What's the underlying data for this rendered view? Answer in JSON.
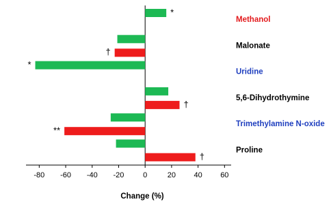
{
  "chart_data": {
    "type": "bar",
    "orientation": "horizontal",
    "x_label": "Change (%)",
    "categories": [
      "Methanol",
      "Malonate",
      "Uridine",
      "5,6-Dihydrothymine",
      "Trimethylamine N-oxide",
      "Proline"
    ],
    "label_colors": [
      "#e31a1c",
      "#000000",
      "#1f3fbf",
      "#000000",
      "#1f3fbf",
      "#000000"
    ],
    "series": [
      {
        "color": "#1db954",
        "values": [
          16,
          -21,
          -83,
          17.5,
          -26,
          -22
        ],
        "annotations": [
          "*",
          null,
          "*",
          null,
          null,
          null
        ]
      },
      {
        "color": "#ee1c1c",
        "values": [
          null,
          -23,
          null,
          26,
          -61,
          38
        ],
        "annotations": [
          null,
          "†",
          null,
          "†",
          "**",
          "†"
        ]
      }
    ],
    "xlim": [
      -90,
      65
    ],
    "xticks": [
      -80,
      -60,
      -40,
      -20,
      0,
      20,
      40,
      60
    ]
  }
}
